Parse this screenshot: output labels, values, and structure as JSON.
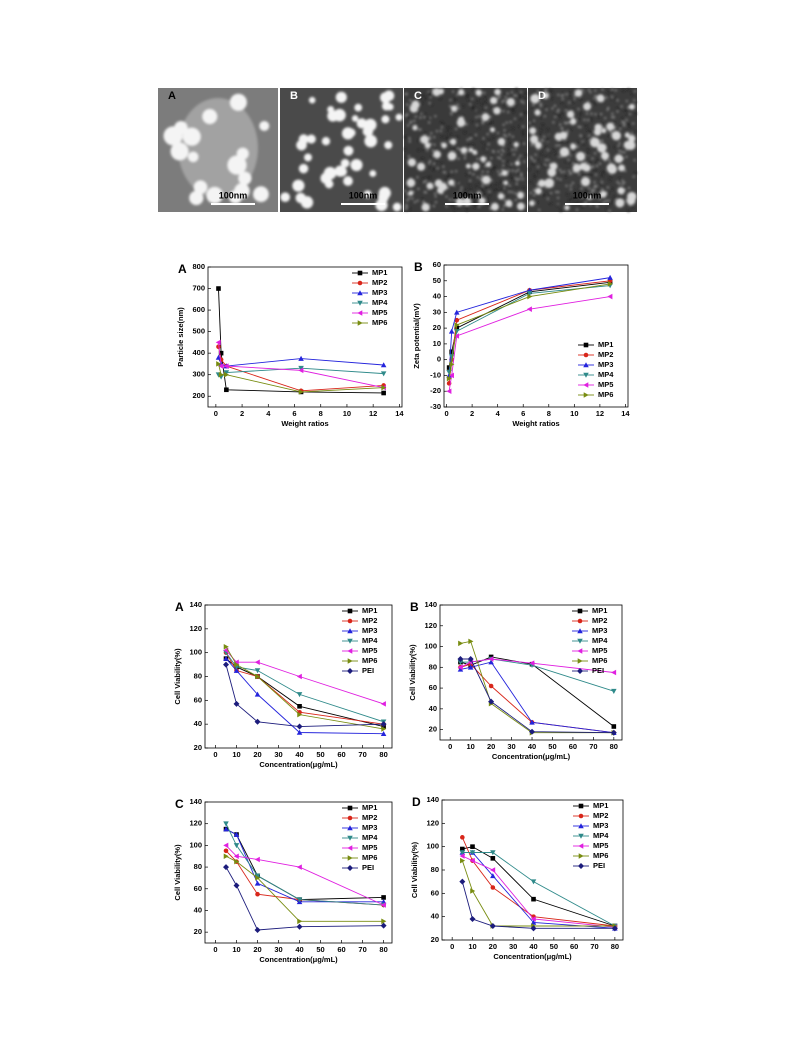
{
  "tem": {
    "panels": [
      {
        "label": "A",
        "scale": "100nm"
      },
      {
        "label": "B",
        "scale": "100nm"
      },
      {
        "label": "C",
        "scale": "100nm"
      },
      {
        "label": "D",
        "scale": "100nm"
      }
    ]
  },
  "chart_data": [
    {
      "type": "line",
      "panel": "A",
      "xlabel": "Weight  ratios",
      "ylabel": "Particle size(nm)",
      "x": [
        0.2,
        0.4,
        0.8,
        6.5,
        12.8
      ],
      "xlim": [
        -0.6,
        14.2
      ],
      "xticks": [
        0,
        2,
        4,
        6,
        8,
        10,
        12,
        14
      ],
      "ylim": [
        150,
        800
      ],
      "yticks": [
        200,
        300,
        400,
        500,
        600,
        700,
        800
      ],
      "legend": "upper right",
      "series": [
        {
          "name": "MP1",
          "color": "#000000",
          "values": [
            700,
            400,
            230,
            220,
            215
          ]
        },
        {
          "name": "MP2",
          "color": "#d8261a",
          "values": [
            430,
            370,
            340,
            225,
            250
          ]
        },
        {
          "name": "MP3",
          "color": "#2424dc",
          "values": [
            380,
            350,
            340,
            375,
            345
          ]
        },
        {
          "name": "MP4",
          "color": "#2f8a8a",
          "values": [
            300,
            290,
            310,
            330,
            305
          ]
        },
        {
          "name": "MP5",
          "color": "#e020e0",
          "values": [
            450,
            340,
            340,
            320,
            240
          ]
        },
        {
          "name": "MP6",
          "color": "#788c10",
          "values": [
            350,
            300,
            300,
            220,
            240
          ]
        }
      ]
    },
    {
      "type": "line",
      "panel": "B",
      "xlabel": "Weight  ratios",
      "ylabel": "Zeta  potential(mV)",
      "x": [
        0.2,
        0.4,
        0.8,
        6.5,
        12.8
      ],
      "xlim": [
        -0.2,
        14.2
      ],
      "xticks": [
        0,
        2,
        4,
        6,
        8,
        10,
        12,
        14
      ],
      "ylim": [
        -30,
        60
      ],
      "yticks": [
        -30,
        -20,
        -10,
        0,
        10,
        20,
        30,
        40,
        50,
        60
      ],
      "legend": "lower right",
      "series": [
        {
          "name": "MP1",
          "color": "#000000",
          "values": [
            -5,
            5,
            20,
            43,
            49
          ]
        },
        {
          "name": "MP2",
          "color": "#d8261a",
          "values": [
            -15,
            0,
            25,
            44,
            50
          ]
        },
        {
          "name": "MP3",
          "color": "#2424dc",
          "values": [
            -10,
            18,
            30,
            44,
            52
          ]
        },
        {
          "name": "MP4",
          "color": "#2f8a8a",
          "values": [
            -8,
            2,
            18,
            42,
            47
          ]
        },
        {
          "name": "MP5",
          "color": "#e020e0",
          "values": [
            -20,
            -10,
            15,
            32,
            40
          ]
        },
        {
          "name": "MP6",
          "color": "#788c10",
          "values": [
            -12,
            -3,
            22,
            40,
            48
          ]
        }
      ]
    },
    {
      "type": "line",
      "panel": "A",
      "xlabel": "Concentration(μg/mL)",
      "ylabel": "Cell  Viability(%)",
      "x": [
        5,
        10,
        20,
        40,
        80
      ],
      "xlim": [
        -5,
        84
      ],
      "xticks": [
        0,
        10,
        20,
        30,
        40,
        50,
        60,
        70,
        80
      ],
      "ylim": [
        20,
        140
      ],
      "yticks": [
        20,
        40,
        60,
        80,
        100,
        120,
        140
      ],
      "legend": "upper right",
      "series": [
        {
          "name": "MP1",
          "color": "#000000",
          "values": [
            95,
            88,
            80,
            55,
            38
          ]
        },
        {
          "name": "MP2",
          "color": "#d8261a",
          "values": [
            100,
            85,
            80,
            50,
            40
          ]
        },
        {
          "name": "MP3",
          "color": "#2424dc",
          "values": [
            95,
            85,
            65,
            33,
            32
          ]
        },
        {
          "name": "MP4",
          "color": "#2f8a8a",
          "values": [
            100,
            88,
            85,
            65,
            42
          ]
        },
        {
          "name": "MP5",
          "color": "#e020e0",
          "values": [
            102,
            92,
            92,
            80,
            57
          ]
        },
        {
          "name": "MP6",
          "color": "#788c10",
          "values": [
            105,
            90,
            80,
            48,
            36
          ]
        },
        {
          "name": "PEI",
          "color": "#1c1c7c",
          "values": [
            90,
            57,
            42,
            38,
            40
          ]
        }
      ]
    },
    {
      "type": "line",
      "panel": "B",
      "xlabel": "Concentration(μg/mL)",
      "ylabel": "Cell  Viability(%)",
      "x": [
        5,
        10,
        20,
        40,
        80
      ],
      "xlim": [
        -5,
        84
      ],
      "xticks": [
        0,
        10,
        20,
        30,
        40,
        50,
        60,
        70,
        80
      ],
      "ylim": [
        10,
        140
      ],
      "yticks": [
        20,
        40,
        60,
        80,
        100,
        120,
        140
      ],
      "legend": "upper right",
      "series": [
        {
          "name": "MP1",
          "color": "#000000",
          "values": [
            85,
            82,
            90,
            83,
            23
          ]
        },
        {
          "name": "MP2",
          "color": "#d8261a",
          "values": [
            80,
            83,
            62,
            27,
            17
          ]
        },
        {
          "name": "MP3",
          "color": "#2424dc",
          "values": [
            78,
            80,
            85,
            27,
            17
          ]
        },
        {
          "name": "MP4",
          "color": "#2f8a8a",
          "values": [
            85,
            85,
            88,
            82,
            57
          ]
        },
        {
          "name": "MP5",
          "color": "#e020e0",
          "values": [
            80,
            85,
            88,
            84,
            75
          ]
        },
        {
          "name": "MP6",
          "color": "#788c10",
          "values": [
            103,
            105,
            45,
            17,
            17
          ]
        },
        {
          "name": "PEI",
          "color": "#1c1c7c",
          "values": [
            88,
            88,
            47,
            18,
            17
          ]
        }
      ]
    },
    {
      "type": "line",
      "panel": "C",
      "xlabel": "Concentration(μg/mL)",
      "ylabel": "Cell  Viability(%)",
      "x": [
        5,
        10,
        20,
        40,
        80
      ],
      "xlim": [
        -5,
        84
      ],
      "xticks": [
        0,
        10,
        20,
        30,
        40,
        50,
        60,
        70,
        80
      ],
      "ylim": [
        10,
        140
      ],
      "yticks": [
        20,
        40,
        60,
        80,
        100,
        120,
        140
      ],
      "legend": "upper right",
      "series": [
        {
          "name": "MP1",
          "color": "#000000",
          "values": [
            115,
            110,
            72,
            50,
            52
          ]
        },
        {
          "name": "MP2",
          "color": "#d8261a",
          "values": [
            95,
            85,
            55,
            50,
            45
          ]
        },
        {
          "name": "MP3",
          "color": "#2424dc",
          "values": [
            115,
            110,
            65,
            48,
            48
          ]
        },
        {
          "name": "MP4",
          "color": "#2f8a8a",
          "values": [
            120,
            100,
            72,
            50,
            45
          ]
        },
        {
          "name": "MP5",
          "color": "#e020e0",
          "values": [
            100,
            90,
            87,
            80,
            45
          ]
        },
        {
          "name": "MP6",
          "color": "#788c10",
          "values": [
            90,
            85,
            70,
            30,
            30
          ]
        },
        {
          "name": "PEI",
          "color": "#1c1c7c",
          "values": [
            80,
            63,
            22,
            25,
            26
          ]
        }
      ]
    },
    {
      "type": "line",
      "panel": "D",
      "xlabel": "Concentration(μg/mL)",
      "ylabel": "Cell  Viability(%)",
      "x": [
        5,
        10,
        20,
        40,
        80
      ],
      "xlim": [
        -5,
        84
      ],
      "xticks": [
        0,
        10,
        20,
        30,
        40,
        50,
        60,
        70,
        80
      ],
      "ylim": [
        20,
        140
      ],
      "yticks": [
        20,
        40,
        60,
        80,
        100,
        120,
        140
      ],
      "legend": "upper right",
      "series": [
        {
          "name": "MP1",
          "color": "#000000",
          "values": [
            98,
            100,
            90,
            55,
            32
          ]
        },
        {
          "name": "MP2",
          "color": "#d8261a",
          "values": [
            108,
            88,
            65,
            40,
            32
          ]
        },
        {
          "name": "MP3",
          "color": "#2424dc",
          "values": [
            95,
            95,
            75,
            35,
            30
          ]
        },
        {
          "name": "MP4",
          "color": "#2f8a8a",
          "values": [
            95,
            95,
            95,
            70,
            32
          ]
        },
        {
          "name": "MP5",
          "color": "#e020e0",
          "values": [
            92,
            88,
            80,
            38,
            31
          ]
        },
        {
          "name": "MP6",
          "color": "#788c10",
          "values": [
            88,
            62,
            32,
            32,
            32
          ]
        },
        {
          "name": "PEI",
          "color": "#1c1c7c",
          "values": [
            70,
            38,
            32,
            30,
            30
          ]
        }
      ]
    }
  ]
}
